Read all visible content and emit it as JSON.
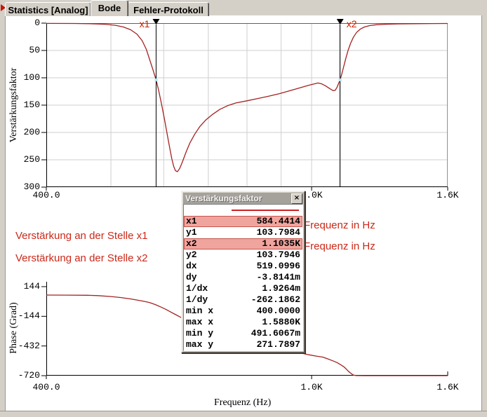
{
  "tabs": [
    {
      "label": "Statistics [Analog]",
      "active": false
    },
    {
      "label": "Bode",
      "active": true
    },
    {
      "label": "Fehler-Protokoll",
      "active": false
    }
  ],
  "annotations": {
    "gain_at_x1": "Verstärkung an der Stelle x1",
    "gain_at_x2": "Verstärkung an der Stelle x2",
    "freq_hz_1": "Frequenz in Hz",
    "freq_hz_2": "Frequenz in Hz"
  },
  "cursor_window": {
    "title": "Verstärkungsfaktor",
    "close_label": "×",
    "rows": [
      {
        "label": "x1",
        "value": "584.4414",
        "highlight": true
      },
      {
        "label": "y1",
        "value": "103.7984",
        "highlight": false
      },
      {
        "label": "x2",
        "value": "1.1035K",
        "highlight": true
      },
      {
        "label": "y2",
        "value": "103.7946",
        "highlight": false
      },
      {
        "label": "dx",
        "value": "519.0996",
        "highlight": false
      },
      {
        "label": "dy",
        "value": "-3.8141m",
        "highlight": false
      },
      {
        "label": "1/dx",
        "value": "1.9264m",
        "highlight": false
      },
      {
        "label": "1/dy",
        "value": "-262.1862",
        "highlight": false
      },
      {
        "label": "min x",
        "value": "400.0000",
        "highlight": false
      },
      {
        "label": "max x",
        "value": "1.5880K",
        "highlight": false
      },
      {
        "label": "min y",
        "value": "491.6067m",
        "highlight": false
      },
      {
        "label": "max y",
        "value": "271.7897",
        "highlight": false
      }
    ]
  },
  "colors": {
    "curve": "#a32222",
    "annotation_red": "#cc2819",
    "grid": "#cfcfcf",
    "axis": "#000000",
    "frame_top": "#606060",
    "frame_right": "#909090",
    "cursor_line": "#000000",
    "cursor_marker": "#aee6f6",
    "highlight_row": "#f0a49e"
  },
  "chart_data": [
    {
      "type": "line",
      "ylabel": "Verstärkungsfaktor",
      "x_scale": "log",
      "x_range": [
        400,
        1600
      ],
      "y_range": [
        0,
        300
      ],
      "x_ticks": [
        {
          "v": 400,
          "label": "400.0"
        },
        {
          "v": 1000,
          "label": "1.0K"
        },
        {
          "v": 1600,
          "label": "1.6K"
        }
      ],
      "y_ticks": [
        0,
        50,
        100,
        150,
        200,
        250,
        300
      ],
      "grid_x": [
        500,
        600,
        700,
        800,
        900,
        1000,
        1100
      ],
      "grid_y": [
        50,
        100,
        150,
        200,
        250
      ],
      "cursors": [
        {
          "name": "x1",
          "x": 584.4414,
          "y": 103.7984
        },
        {
          "name": "x2",
          "x": 1103.5,
          "y": 103.7946
        }
      ],
      "series": [
        {
          "name": "Verstärkungsfaktor",
          "points": [
            [
              400,
              0.5
            ],
            [
              440,
              0.7
            ],
            [
              465,
              1
            ],
            [
              490,
              2
            ],
            [
              508,
              4
            ],
            [
              522,
              7
            ],
            [
              535,
              12
            ],
            [
              547,
              20
            ],
            [
              557,
              32
            ],
            [
              565,
              48
            ],
            [
              572,
              68
            ],
            [
              578,
              85
            ],
            [
              584.44,
              103.8
            ],
            [
              590,
              125
            ],
            [
              596,
              150
            ],
            [
              602,
              178
            ],
            [
              608,
              207
            ],
            [
              613,
              230
            ],
            [
              617,
              248
            ],
            [
              621,
              262
            ],
            [
              625,
              270
            ],
            [
              629,
              271.8
            ],
            [
              634,
              266
            ],
            [
              640,
              254
            ],
            [
              648,
              236
            ],
            [
              657,
              219
            ],
            [
              668,
              203
            ],
            [
              680,
              189
            ],
            [
              694,
              177
            ],
            [
              710,
              167
            ],
            [
              728,
              158
            ],
            [
              748,
              151
            ],
            [
              770,
              146
            ],
            [
              800,
              142
            ],
            [
              830,
              138
            ],
            [
              860,
              134
            ],
            [
              895,
              129
            ],
            [
              925,
              124
            ],
            [
              950,
              120
            ],
            [
              975,
              116
            ],
            [
              995,
              113
            ],
            [
              1010,
              111
            ],
            [
              1022,
              109.5
            ],
            [
              1035,
              111
            ],
            [
              1050,
              115
            ],
            [
              1065,
              120
            ],
            [
              1077,
              123.5
            ],
            [
              1085,
              123
            ],
            [
              1092,
              117
            ],
            [
              1098,
              110
            ],
            [
              1103.5,
              103.8
            ],
            [
              1110,
              93
            ],
            [
              1117,
              80
            ],
            [
              1125,
              65
            ],
            [
              1134,
              50
            ],
            [
              1144,
              37
            ],
            [
              1155,
              26
            ],
            [
              1168,
              17
            ],
            [
              1183,
              11
            ],
            [
              1200,
              7
            ],
            [
              1222,
              4.5
            ],
            [
              1250,
              3
            ],
            [
              1290,
              2
            ],
            [
              1350,
              1.4
            ],
            [
              1430,
              1
            ],
            [
              1520,
              0.8
            ],
            [
              1600,
              0.7
            ]
          ]
        }
      ]
    },
    {
      "type": "line",
      "ylabel": "Phase (Grad)",
      "xlabel": "Frequenz (Hz)",
      "x_scale": "log",
      "x_range": [
        400,
        1600
      ],
      "y_range": [
        144,
        -720
      ],
      "x_ticks": [
        {
          "v": 400,
          "label": "400.0"
        },
        {
          "v": 1000,
          "label": "1.0K"
        },
        {
          "v": 1600,
          "label": "1.6K"
        }
      ],
      "y_ticks": [
        144,
        -144,
        -432,
        -720
      ],
      "series": [
        {
          "name": "Phase",
          "points": [
            [
              400,
              62.5
            ],
            [
              430,
              61.5
            ],
            [
              460,
              60
            ],
            [
              478,
              57
            ],
            [
              500,
              48
            ],
            [
              518,
              38
            ],
            [
              535,
              25
            ],
            [
              549,
              12
            ],
            [
              560,
              2
            ],
            [
              571,
              -10
            ],
            [
              583,
              -30
            ],
            [
              595,
              -55
            ],
            [
              605,
              -78
            ],
            [
              614,
              -100
            ],
            [
              624,
              -125
            ],
            [
              634,
              -148
            ],
            [
              645,
              -175
            ],
            [
              660,
              -215
            ],
            [
              680,
              -270
            ],
            [
              700,
              -320
            ],
            [
              730,
              -380
            ],
            [
              760,
              -420
            ],
            [
              800,
              -450
            ],
            [
              850,
              -470
            ],
            [
              900,
              -483
            ],
            [
              940,
              -492
            ],
            [
              959,
              -497
            ],
            [
              990,
              -517
            ],
            [
              1020,
              -532
            ],
            [
              1039,
              -540
            ],
            [
              1057,
              -557
            ],
            [
              1075,
              -575
            ],
            [
              1091,
              -592
            ],
            [
              1105,
              -613
            ],
            [
              1118,
              -634
            ],
            [
              1128,
              -658
            ],
            [
              1137,
              -681
            ],
            [
              1147,
              -700
            ],
            [
              1154,
              -713
            ],
            [
              1165,
              -719
            ],
            [
              1200,
              -720
            ],
            [
              1600,
              -720
            ]
          ]
        }
      ]
    }
  ]
}
